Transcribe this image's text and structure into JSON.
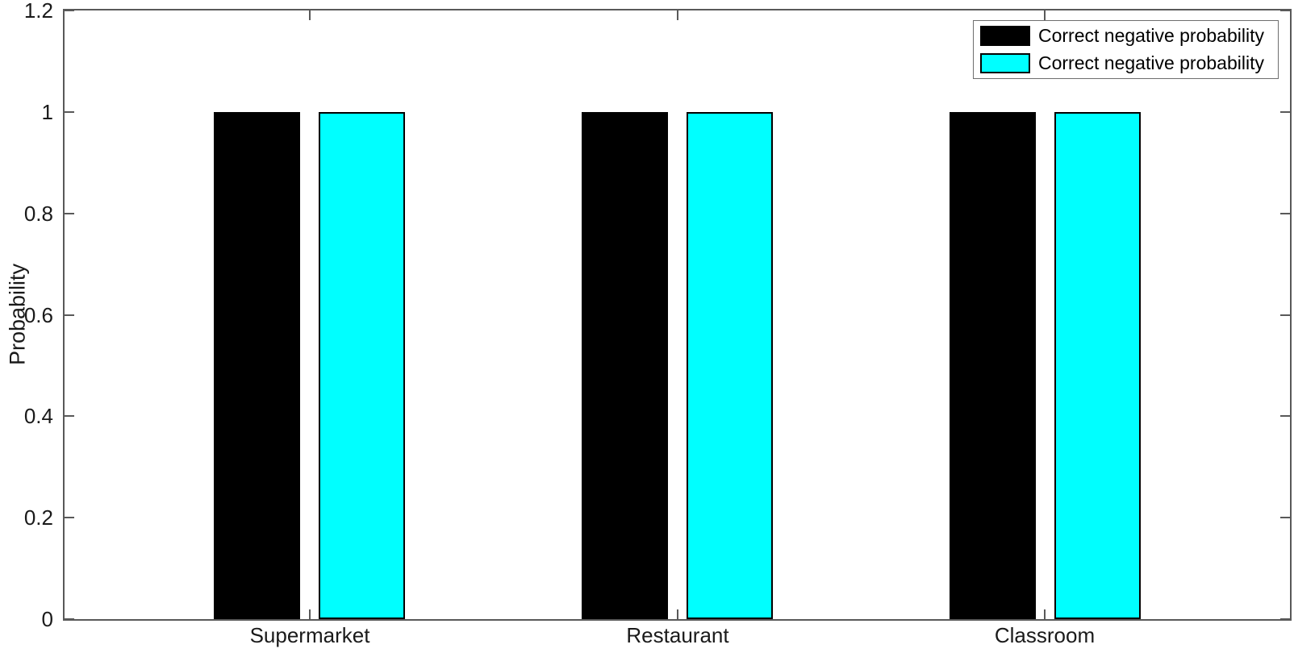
{
  "chart_data": {
    "type": "bar",
    "title": "",
    "categories": [
      "Supermarket",
      "Restaurant",
      "Classroom"
    ],
    "series": [
      {
        "name": "Correct negative probability",
        "color": "#000000",
        "edge_color": "#000000",
        "values": [
          1,
          1,
          1
        ]
      },
      {
        "name": "Correct negative probability",
        "color": "#00ffff",
        "edge_color": "#000000",
        "values": [
          1,
          1,
          1
        ]
      }
    ],
    "xlabel": "",
    "ylabel": "Probability",
    "ylim": [
      0,
      1.2
    ],
    "yticks": [
      0,
      0.2,
      0.4,
      0.6,
      0.8,
      1,
      1.2
    ],
    "ytick_labels": [
      "0",
      "0.2",
      "0.4",
      "0.6",
      "0.8",
      "1",
      "1.2"
    ],
    "grid": false,
    "legend_position": "top-right",
    "legend_entries": [
      "Correct negative probability",
      "Correct negative probability"
    ]
  }
}
